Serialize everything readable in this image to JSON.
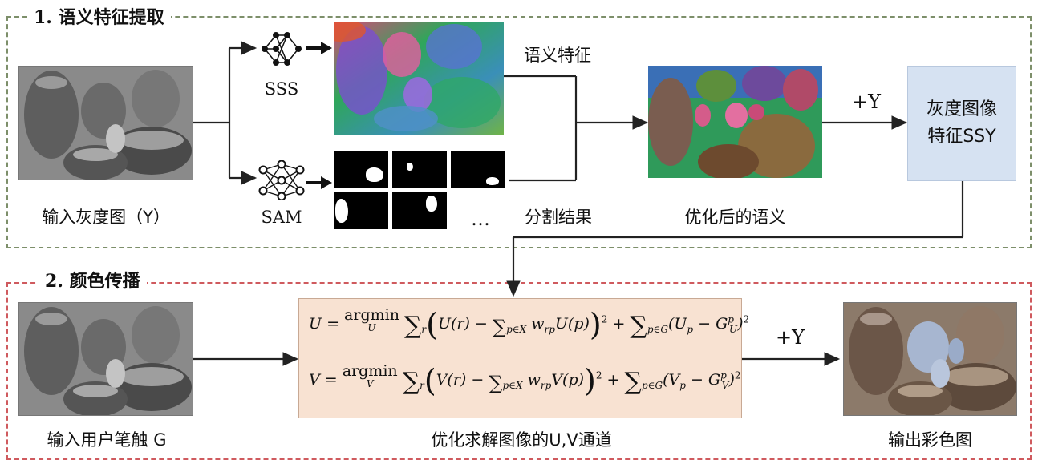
{
  "section1": {
    "title": "1. 语义特征提取",
    "input_label": "输入灰度图（Y）",
    "sss_label": "SSS",
    "sam_label": "SAM",
    "semantic_feature_label": "语义特征",
    "ellipsis": "…",
    "segmentation_label": "分割结果",
    "optimized_label": "优化后的语义",
    "plus_y": "+Y",
    "ssy_box": {
      "line1": "灰度图像",
      "line2": "特征SSY"
    }
  },
  "section2": {
    "title": "2. 颜色传播",
    "input_label": "输入用户笔触  G",
    "optimize_label": "优化求解图像的U,V通道",
    "plus_y": "+Y",
    "output_label": "输出彩色图"
  },
  "colors": {
    "section1_border": "#7d8f6a",
    "section2_border": "#cf5a5e",
    "ssy_fill": "#d6e2f2",
    "formula_fill": "#f8e2d2"
  },
  "icons": {
    "sss": "neural-network-icon",
    "sam": "neural-network-icon"
  }
}
